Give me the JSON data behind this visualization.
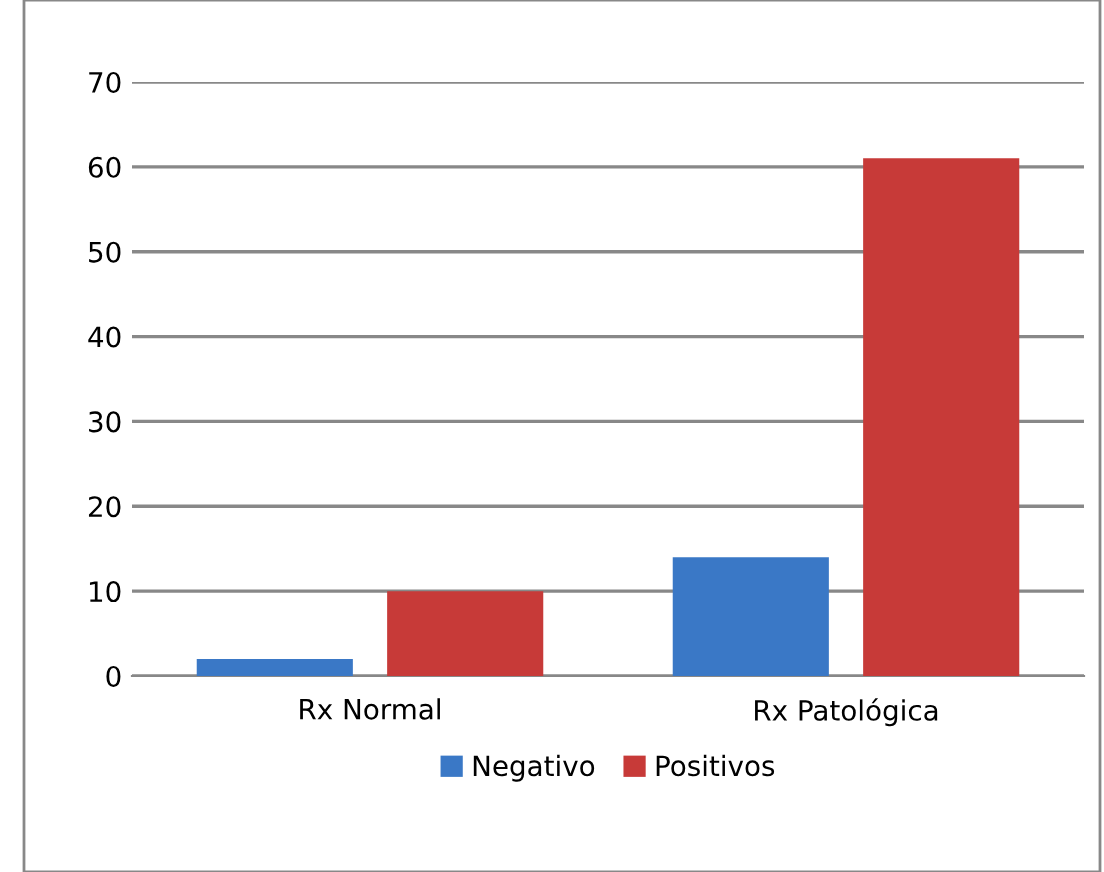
{
  "chart_data": {
    "type": "bar",
    "categories": [
      "Rx Normal",
      "Rx Patológica"
    ],
    "series": [
      {
        "name": "Negativo",
        "color": "#3a78c6",
        "values": [
          2,
          14
        ]
      },
      {
        "name": "Positivos",
        "color": "#c73a38",
        "values": [
          10,
          61
        ]
      }
    ],
    "ylim": [
      0,
      70
    ],
    "yticks": [
      0,
      10,
      20,
      30,
      40,
      50,
      60,
      70
    ],
    "grid": "y",
    "legend": "bottom"
  }
}
